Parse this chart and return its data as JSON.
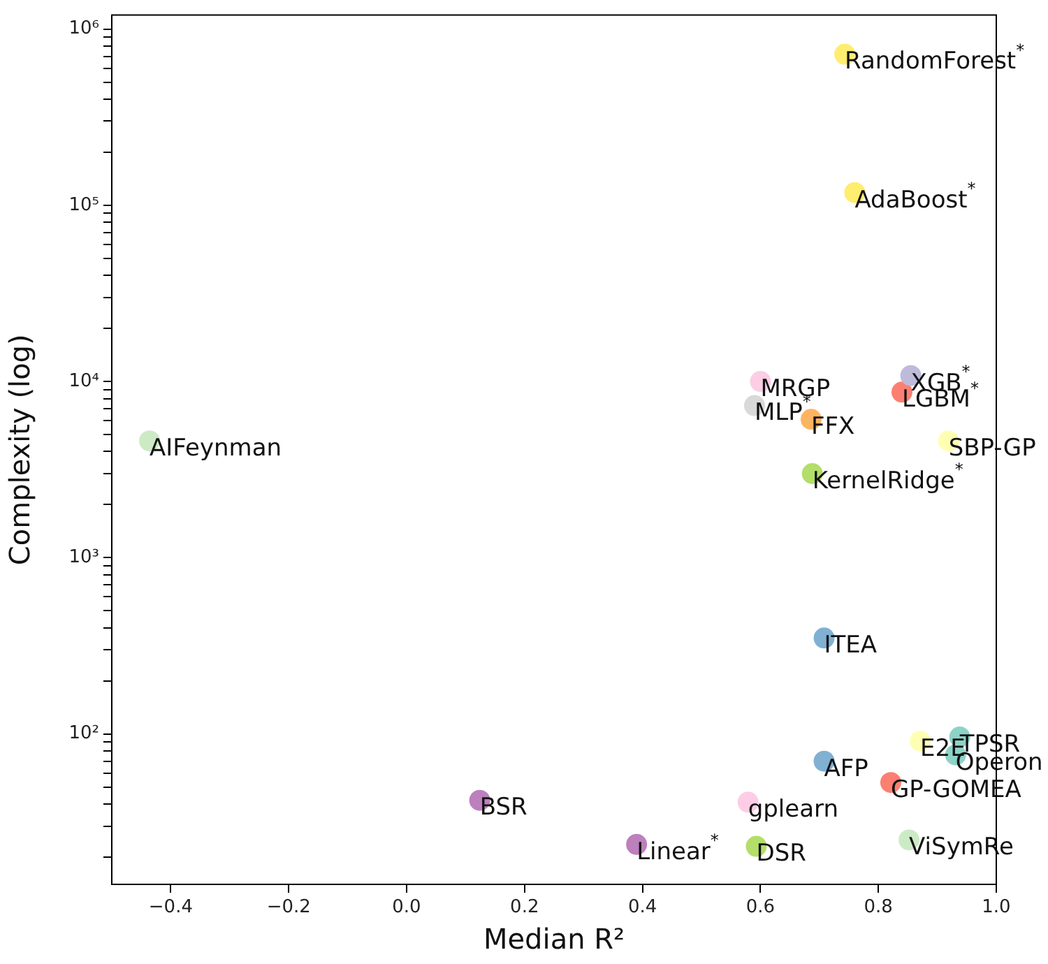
{
  "chart_data": {
    "type": "scatter",
    "xlabel": "Median R²",
    "ylabel": "Complexity (log)",
    "log": "y",
    "marker": "circle",
    "xlim": [
      -0.5,
      1.0
    ],
    "ylim": [
      14,
      1200000
    ],
    "xticks": [
      {
        "value": -0.4,
        "label": "−0.4"
      },
      {
        "value": -0.2,
        "label": "−0.2"
      },
      {
        "value": 0,
        "label": "0.0"
      },
      0.2,
      0.4,
      0.6,
      0.8,
      {
        "value": 1,
        "label": "1.0"
      }
    ],
    "yticks": [
      {
        "value": 100,
        "label": "10²"
      },
      {
        "value": 1000,
        "label": "10³"
      },
      {
        "value": 10000,
        "label": "10⁴"
      },
      {
        "value": 100000,
        "label": "10⁵"
      },
      {
        "value": 1000000,
        "label": "10⁶"
      },
      {
        "value": 20,
        "label": null
      },
      {
        "value": 30,
        "label": null
      },
      {
        "value": 40,
        "label": null
      },
      {
        "value": 50,
        "label": null
      },
      {
        "value": 60,
        "label": null
      },
      {
        "value": 70,
        "label": null
      },
      {
        "value": 80,
        "label": null
      },
      {
        "value": 90,
        "label": null
      },
      {
        "value": 200,
        "label": null
      },
      {
        "value": 300,
        "label": null
      },
      {
        "value": 400,
        "label": null
      },
      {
        "value": 500,
        "label": null
      },
      {
        "value": 600,
        "label": null
      },
      {
        "value": 700,
        "label": null
      },
      {
        "value": 800,
        "label": null
      },
      {
        "value": 900,
        "label": null
      },
      {
        "value": 2000,
        "label": null
      },
      {
        "value": 3000,
        "label": null
      },
      {
        "value": 4000,
        "label": null
      },
      {
        "value": 5000,
        "label": null
      },
      {
        "value": 6000,
        "label": null
      },
      {
        "value": 7000,
        "label": null
      },
      {
        "value": 8000,
        "label": null
      },
      {
        "value": 9000,
        "label": null
      },
      {
        "value": 20000,
        "label": null
      },
      {
        "value": 30000,
        "label": null
      },
      {
        "value": 40000,
        "label": null
      },
      {
        "value": 50000,
        "label": null
      },
      {
        "value": 60000,
        "label": null
      },
      {
        "value": 70000,
        "label": null
      },
      {
        "value": 80000,
        "label": null
      },
      {
        "value": 90000,
        "label": null
      },
      {
        "value": 200000,
        "label": null
      },
      {
        "value": 300000,
        "label": null
      },
      {
        "value": 400000,
        "label": null
      },
      {
        "value": 500000,
        "label": null
      },
      {
        "value": 600000,
        "label": null
      },
      {
        "value": 700000,
        "label": null
      },
      {
        "value": 800000,
        "label": null
      },
      {
        "value": 900000,
        "label": null
      }
    ],
    "series": [
      {
        "name": "RandomForest$^{*}$",
        "color": "#ffed6f",
        "x": [
          0.743
        ],
        "values": [
          720000
        ]
      },
      {
        "name": "AdaBoost$^{*}$",
        "color": "#ffed6f",
        "x": [
          0.76
        ],
        "values": [
          118000
        ]
      },
      {
        "name": "XGB$^{*}$",
        "color": "#bebada",
        "x": [
          0.855
        ],
        "values": [
          10800
        ]
      },
      {
        "name": "LGBM$^{*}$",
        "color": "#fb8072",
        "x": [
          0.84
        ],
        "values": [
          8700
        ]
      },
      {
        "name": "MRGP",
        "color": "#fccde5",
        "x": [
          0.6
        ],
        "values": [
          10000
        ]
      },
      {
        "name": "MLP$^{*}$",
        "color": "#d9d9d9",
        "x": [
          0.59
        ],
        "values": [
          7300
        ]
      },
      {
        "name": "FFX",
        "color": "#fdb462",
        "x": [
          0.686
        ],
        "values": [
          6100
        ]
      },
      {
        "name": "SBP-GP",
        "color": "#ffffb3",
        "x": [
          0.919
        ],
        "values": [
          4600
        ]
      },
      {
        "name": "KernelRidge$^{*}$",
        "color": "#b3de69",
        "x": [
          0.688
        ],
        "values": [
          3000
        ]
      },
      {
        "name": "AIFeynman",
        "color": "#ccebc5",
        "x": [
          -0.436
        ],
        "values": [
          4600
        ]
      },
      {
        "name": "ITEA",
        "color": "#80b1d3",
        "x": [
          0.708
        ],
        "values": [
          350
        ]
      },
      {
        "name": "E2E",
        "color": "#ffffb3",
        "x": [
          0.871
        ],
        "values": [
          91
        ]
      },
      {
        "name": "TPSR",
        "color": "#8dd3c7",
        "x": [
          0.938
        ],
        "values": [
          96
        ]
      },
      {
        "name": "Operon",
        "color": "#8dd3c7",
        "x": [
          0.931
        ],
        "values": [
          76
        ]
      },
      {
        "name": "AFP",
        "color": "#80b1d3",
        "x": [
          0.708
        ],
        "values": [
          70
        ]
      },
      {
        "name": "GP-GOMEA",
        "color": "#fb8072",
        "x": [
          0.821
        ],
        "values": [
          53
        ]
      },
      {
        "name": "BSR",
        "color": "#bc80bd",
        "x": [
          0.124
        ],
        "values": [
          42
        ]
      },
      {
        "name": "gplearn",
        "color": "#fccde5",
        "x": [
          0.579
        ],
        "values": [
          41
        ]
      },
      {
        "name": "Linear$^{*}$",
        "color": "#bc80bd",
        "x": [
          0.39
        ],
        "values": [
          23.6
        ]
      },
      {
        "name": "DSR",
        "color": "#b3de69",
        "x": [
          0.593
        ],
        "values": [
          23
        ]
      },
      {
        "name": "ViSymRe",
        "color": "#ccebc5",
        "x": [
          0.852
        ],
        "values": [
          25
        ]
      }
    ]
  }
}
